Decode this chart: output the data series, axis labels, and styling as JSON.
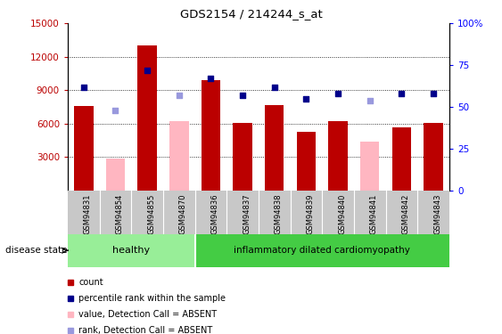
{
  "title": "GDS2154 / 214244_s_at",
  "samples": [
    "GSM94831",
    "GSM94854",
    "GSM94855",
    "GSM94870",
    "GSM94836",
    "GSM94837",
    "GSM94838",
    "GSM94839",
    "GSM94840",
    "GSM94841",
    "GSM94842",
    "GSM94843"
  ],
  "n_healthy": 4,
  "n_disease": 8,
  "bar_values": [
    7600,
    2900,
    13000,
    6200,
    9900,
    6100,
    7700,
    5300,
    6200,
    4400,
    5700,
    6100
  ],
  "bar_absent": [
    false,
    true,
    false,
    true,
    false,
    false,
    false,
    false,
    false,
    true,
    false,
    false
  ],
  "scatter_pct": [
    62,
    48,
    72,
    57,
    67,
    57,
    62,
    55,
    58,
    54,
    58,
    58
  ],
  "scatter_absent": [
    false,
    true,
    false,
    true,
    false,
    false,
    false,
    false,
    false,
    true,
    false,
    false
  ],
  "ylim_left": [
    0,
    15000
  ],
  "ylim_right": [
    0,
    100
  ],
  "yticks_left": [
    3000,
    6000,
    9000,
    12000,
    15000
  ],
  "yticks_right": [
    0,
    25,
    50,
    75,
    100
  ],
  "ytick_right_labels": [
    "0",
    "25",
    "50",
    "75",
    "100%"
  ],
  "bar_color_normal": "#BB0000",
  "bar_color_absent": "#FFB6C1",
  "scatter_color_normal": "#00008B",
  "scatter_color_absent": "#9999DD",
  "group_healthy_color": "#98EE98",
  "group_disease_color": "#44CC44",
  "tick_label_area_color": "#C8C8C8",
  "group_label_healthy": "healthy",
  "group_label_disease": "inflammatory dilated cardiomyopathy",
  "legend_items": [
    "count",
    "percentile rank within the sample",
    "value, Detection Call = ABSENT",
    "rank, Detection Call = ABSENT"
  ],
  "legend_colors": [
    "#BB0000",
    "#00008B",
    "#FFB6C1",
    "#9999DD"
  ],
  "disease_state_label": "disease state"
}
